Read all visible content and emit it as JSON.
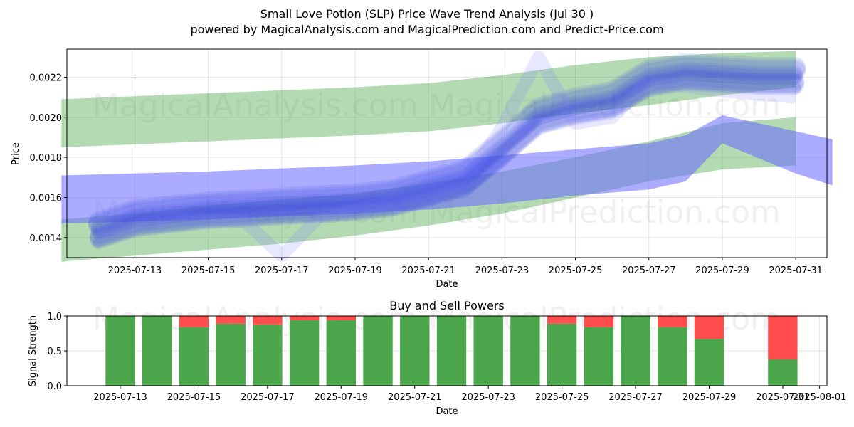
{
  "chart_data": [
    {
      "type": "area",
      "title": "Small Love Potion (SLP) Price Wave Trend Analysis (Jul 30 )",
      "subtitle": "powered by MagicalAnalysis.com and MagicalPrediction.com and Predict-Price.com",
      "xlabel": "Date",
      "ylabel": "Price",
      "x_ticks": [
        "2025-07-13",
        "2025-07-15",
        "2025-07-17",
        "2025-07-19",
        "2025-07-21",
        "2025-07-23",
        "2025-07-25",
        "2025-07-27",
        "2025-07-29",
        "2025-07-31"
      ],
      "y_ticks": [
        "0.0014",
        "0.0016",
        "0.0018",
        "0.0020",
        "0.0022"
      ],
      "xlim": [
        "2025-07-11",
        "2025-08-01"
      ],
      "ylim": [
        0.0013,
        0.00234
      ],
      "grid": true,
      "watermarks": [
        "MagicalAnalysis.com",
        "MagicalPrediction.com",
        "MagicalAnalysis.com",
        "MagicalPrediction.com"
      ],
      "green_bands": [
        {
          "x": [
            "2025-07-11",
            "2025-07-15",
            "2025-07-19",
            "2025-07-21",
            "2025-07-23",
            "2025-07-25",
            "2025-07-27",
            "2025-07-29",
            "2025-07-31"
          ],
          "upper": [
            0.00209,
            0.00212,
            0.00215,
            0.00217,
            0.00221,
            0.00226,
            0.0023,
            0.00232,
            0.00233
          ],
          "lower": [
            0.00185,
            0.00188,
            0.00191,
            0.00193,
            0.00197,
            0.00202,
            0.00206,
            0.00211,
            0.00215
          ]
        },
        {
          "x": [
            "2025-07-11",
            "2025-07-13",
            "2025-07-15",
            "2025-07-17",
            "2025-07-19",
            "2025-07-21",
            "2025-07-23",
            "2025-07-25",
            "2025-07-27",
            "2025-07-29",
            "2025-07-31"
          ],
          "upper": [
            0.00149,
            0.00152,
            0.00156,
            0.00159,
            0.00162,
            0.00167,
            0.00173,
            0.0018,
            0.00188,
            0.00197,
            0.002
          ],
          "lower": [
            0.00128,
            0.00131,
            0.00134,
            0.00137,
            0.00141,
            0.00146,
            0.00152,
            0.0016,
            0.00168,
            0.00174,
            0.00176
          ]
        }
      ],
      "blue_bands": [
        {
          "x": [
            "2025-07-11",
            "2025-07-15",
            "2025-07-19",
            "2025-07-21",
            "2025-07-23",
            "2025-07-25",
            "2025-07-27",
            "2025-07-28",
            "2025-07-29",
            "2025-07-31",
            "2025-08-01"
          ],
          "upper": [
            0.00171,
            0.00173,
            0.00176,
            0.00178,
            0.00181,
            0.00184,
            0.00187,
            0.00191,
            0.00201,
            0.00193,
            0.00189
          ],
          "lower": [
            0.00147,
            0.00149,
            0.00152,
            0.00154,
            0.00157,
            0.00161,
            0.00164,
            0.00168,
            0.00187,
            0.00172,
            0.00166
          ]
        }
      ],
      "wave_center": {
        "x": [
          "2025-07-12",
          "2025-07-13",
          "2025-07-15",
          "2025-07-17",
          "2025-07-19",
          "2025-07-20",
          "2025-07-21",
          "2025-07-22",
          "2025-07-23",
          "2025-07-24",
          "2025-07-25",
          "2025-07-26",
          "2025-07-27",
          "2025-07-28",
          "2025-07-29",
          "2025-07-30",
          "2025-07-31"
        ],
        "values": [
          0.00142,
          0.00148,
          0.00152,
          0.00154,
          0.00156,
          0.00158,
          0.00163,
          0.00168,
          0.00183,
          0.00199,
          0.00204,
          0.00207,
          0.00218,
          0.00221,
          0.0022,
          0.00219,
          0.00219
        ]
      },
      "wave_offsets": [
        0,
        2e-05,
        -2e-05,
        4e-05,
        -4e-05,
        1e-05,
        -3e-05,
        5e-05,
        -5e-05,
        3e-05,
        -1e-05,
        6e-05
      ],
      "spike_variant": {
        "x": [
          "2025-07-12",
          "2025-07-14",
          "2025-07-16",
          "2025-07-17",
          "2025-07-18",
          "2025-07-20",
          "2025-07-22",
          "2025-07-23",
          "2025-07-24",
          "2025-07-25",
          "2025-07-26",
          "2025-07-27",
          "2025-07-29",
          "2025-07-31"
        ],
        "values": [
          0.00142,
          0.0015,
          0.00148,
          0.00131,
          0.0015,
          0.00158,
          0.00168,
          0.00195,
          0.0023,
          0.00197,
          0.002,
          0.00218,
          0.00213,
          0.0021
        ]
      }
    },
    {
      "type": "bar",
      "title": "Buy and Sell Powers",
      "xlabel": "Date",
      "ylabel": "Signal Strength",
      "x_ticks": [
        "2025-07-13",
        "2025-07-15",
        "2025-07-17",
        "2025-07-19",
        "2025-07-21",
        "2025-07-23",
        "2025-07-25",
        "2025-07-27",
        "2025-07-29",
        "2025-07-31",
        "2025-08-01"
      ],
      "y_ticks": [
        "0.0",
        "0.5",
        "1.0"
      ],
      "xlim": [
        "2025-07-11",
        "2025-08-01"
      ],
      "ylim": [
        0,
        1
      ],
      "grid": true,
      "watermarks": [
        "MagicalAnalysis.com",
        "MagicalPrediction.com"
      ],
      "categories": [
        "2025-07-13",
        "2025-07-14",
        "2025-07-15",
        "2025-07-16",
        "2025-07-17",
        "2025-07-18",
        "2025-07-19",
        "2025-07-20",
        "2025-07-21",
        "2025-07-22",
        "2025-07-23",
        "2025-07-24",
        "2025-07-25",
        "2025-07-26",
        "2025-07-27",
        "2025-07-28",
        "2025-07-29",
        "2025-07-31"
      ],
      "series": [
        {
          "color": "#4ca64c",
          "values": [
            1.0,
            1.0,
            0.84,
            0.89,
            0.88,
            0.94,
            0.94,
            1.0,
            1.0,
            1.0,
            1.0,
            1.0,
            0.89,
            0.84,
            1.0,
            0.84,
            0.67,
            0.38
          ]
        },
        {
          "color": "#ff4c4c",
          "values": [
            0.0,
            0.0,
            0.16,
            0.11,
            0.12,
            0.06,
            0.06,
            0.0,
            0.0,
            0.0,
            0.0,
            0.0,
            0.11,
            0.16,
            0.0,
            0.16,
            0.33,
            0.62
          ]
        }
      ]
    }
  ],
  "colors": {
    "green_band": "#4ca64c",
    "blue_band": "#6666ff",
    "wave": "#3b4fe0",
    "buy": "#4ca64c",
    "sell": "#ff4c4c",
    "grid": "#b0b0b0"
  }
}
